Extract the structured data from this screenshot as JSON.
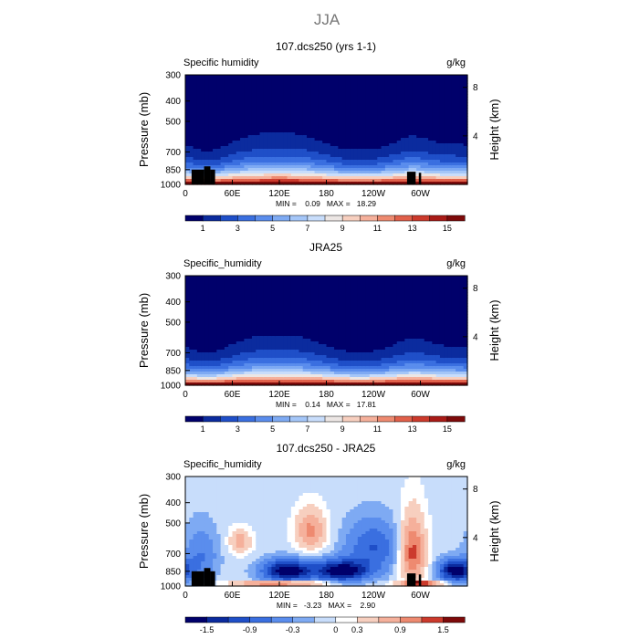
{
  "figure": {
    "title": "JJA"
  },
  "chart_data": [
    {
      "type": "heatmap",
      "panel": "top",
      "title": "107.dcs250 (yrs 1-1)",
      "left_label": "Specific humidity",
      "right_label": "g/kg",
      "ylabel": "Pressure (mb)",
      "ylabel_right": "Height (km)",
      "x_ticks": [
        "0",
        "60E",
        "120E",
        "180",
        "120W",
        "60W"
      ],
      "x_tick_values": [
        0,
        60,
        120,
        180,
        240,
        300
      ],
      "xlim": [
        0,
        360
      ],
      "y_ticks": [
        "300",
        "400",
        "500",
        "700",
        "850",
        "1000"
      ],
      "y_tick_values": [
        300,
        400,
        500,
        700,
        850,
        1000
      ],
      "ylim": [
        1000,
        300
      ],
      "y_right_ticks": [
        "8",
        "4"
      ],
      "y_right_tick_values": [
        8,
        4
      ],
      "minmax_text": "MIN =    0.09   MAX =   18.29",
      "colorbar": {
        "levels": [
          1,
          2,
          3,
          4,
          5,
          6,
          7,
          8,
          9,
          10,
          11,
          12,
          13,
          14,
          15
        ],
        "labels": [
          "1",
          "3",
          "5",
          "7",
          "9",
          "11",
          "13",
          "15"
        ],
        "colors": [
          "#00006b",
          "#0b2b9e",
          "#1f4fc8",
          "#3a6fe0",
          "#5a8ded",
          "#7eaaf3",
          "#a4c6f8",
          "#c8ddfb",
          "#ece6e4",
          "#f7cfbf",
          "#f5b09b",
          "#ee8a70",
          "#e1604a",
          "#cc3a2c",
          "#a91b17",
          "#7e0a0a"
        ]
      }
    },
    {
      "type": "heatmap",
      "panel": "middle",
      "title": "JRA25",
      "left_label": "Specific_humidity",
      "right_label": "g/kg",
      "ylabel": "Pressure (mb)",
      "ylabel_right": "Height (km)",
      "x_ticks": [
        "0",
        "60E",
        "120E",
        "180",
        "120W",
        "60W"
      ],
      "x_tick_values": [
        0,
        60,
        120,
        180,
        240,
        300
      ],
      "xlim": [
        0,
        360
      ],
      "y_ticks": [
        "300",
        "400",
        "500",
        "700",
        "850",
        "1000"
      ],
      "y_tick_values": [
        300,
        400,
        500,
        700,
        850,
        1000
      ],
      "ylim": [
        1000,
        300
      ],
      "y_right_ticks": [
        "8",
        "4"
      ],
      "y_right_tick_values": [
        8,
        4
      ],
      "minmax_text": "MIN =    0.14   MAX =   17.81",
      "colorbar": {
        "levels": [
          1,
          2,
          3,
          4,
          5,
          6,
          7,
          8,
          9,
          10,
          11,
          12,
          13,
          14,
          15
        ],
        "labels": [
          "1",
          "3",
          "5",
          "7",
          "9",
          "11",
          "13",
          "15"
        ],
        "colors": [
          "#00006b",
          "#0b2b9e",
          "#1f4fc8",
          "#3a6fe0",
          "#5a8ded",
          "#7eaaf3",
          "#a4c6f8",
          "#c8ddfb",
          "#ece6e4",
          "#f7cfbf",
          "#f5b09b",
          "#ee8a70",
          "#e1604a",
          "#cc3a2c",
          "#a91b17",
          "#7e0a0a"
        ]
      }
    },
    {
      "type": "heatmap",
      "panel": "bottom",
      "title": "107.dcs250 - JRA25",
      "left_label": "Specific_humidity",
      "right_label": "g/kg",
      "ylabel": "Pressure (mb)",
      "ylabel_right": "Height (km)",
      "x_ticks": [
        "0",
        "60E",
        "120E",
        "180",
        "120W",
        "60W"
      ],
      "x_tick_values": [
        0,
        60,
        120,
        180,
        240,
        300
      ],
      "xlim": [
        0,
        360
      ],
      "y_ticks": [
        "300",
        "400",
        "500",
        "700",
        "850",
        "1000"
      ],
      "y_tick_values": [
        300,
        400,
        500,
        700,
        850,
        1000
      ],
      "ylim": [
        1000,
        300
      ],
      "y_right_ticks": [
        "8",
        "4"
      ],
      "y_right_tick_values": [
        8,
        4
      ],
      "minmax_text": "MIN =   -3.23   MAX =    2.90",
      "colorbar": {
        "levels": [
          -1.5,
          -1.2,
          -0.9,
          -0.6,
          -0.3,
          -0.1,
          0.1,
          0.3,
          0.6,
          0.9,
          1.2,
          1.5
        ],
        "labels": [
          "-1.5",
          "-0.9",
          "-0.3",
          "0",
          "0.3",
          "0.9",
          "1.5"
        ],
        "colors": [
          "#00006b",
          "#0b2b9e",
          "#1f4fc8",
          "#3a6fe0",
          "#5a8ded",
          "#7eaaf3",
          "#c8ddfb",
          "#ffffff",
          "#f7cfbf",
          "#f5b09b",
          "#ee8a70",
          "#cc3a2c",
          "#7e0a0a"
        ]
      }
    }
  ]
}
